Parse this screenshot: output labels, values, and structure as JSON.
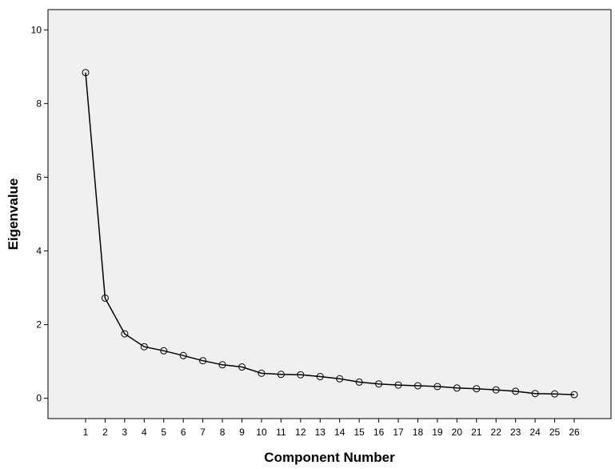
{
  "chart_data": {
    "type": "line",
    "title": "",
    "xlabel": "Component Number",
    "ylabel": "Eigenvalue",
    "x": [
      1,
      2,
      3,
      4,
      5,
      6,
      7,
      8,
      9,
      10,
      11,
      12,
      13,
      14,
      15,
      16,
      17,
      18,
      19,
      20,
      21,
      22,
      23,
      24,
      25,
      26
    ],
    "x_ticks": [
      "1",
      "2",
      "3",
      "4",
      "5",
      "6",
      "7",
      "8",
      "9",
      "10",
      "11",
      "12",
      "13",
      "14",
      "15",
      "16",
      "17",
      "18",
      "19",
      "20",
      "21",
      "22",
      "23",
      "24",
      "25",
      "26"
    ],
    "series": [
      {
        "values": [
          8.84,
          2.72,
          1.75,
          1.4,
          1.29,
          1.16,
          1.02,
          0.91,
          0.85,
          0.68,
          0.65,
          0.64,
          0.59,
          0.53,
          0.44,
          0.39,
          0.36,
          0.34,
          0.32,
          0.28,
          0.26,
          0.23,
          0.19,
          0.13,
          0.12,
          0.1
        ]
      }
    ],
    "y_ticks": [
      "0",
      "2",
      "4",
      "6",
      "8",
      "10"
    ],
    "ylim": [
      -0.55,
      10.55
    ],
    "grid": false,
    "marker": "open-circle",
    "colors": {
      "plot_background": "#f0f0f0",
      "line": "#000000",
      "axis": "#000000"
    }
  }
}
